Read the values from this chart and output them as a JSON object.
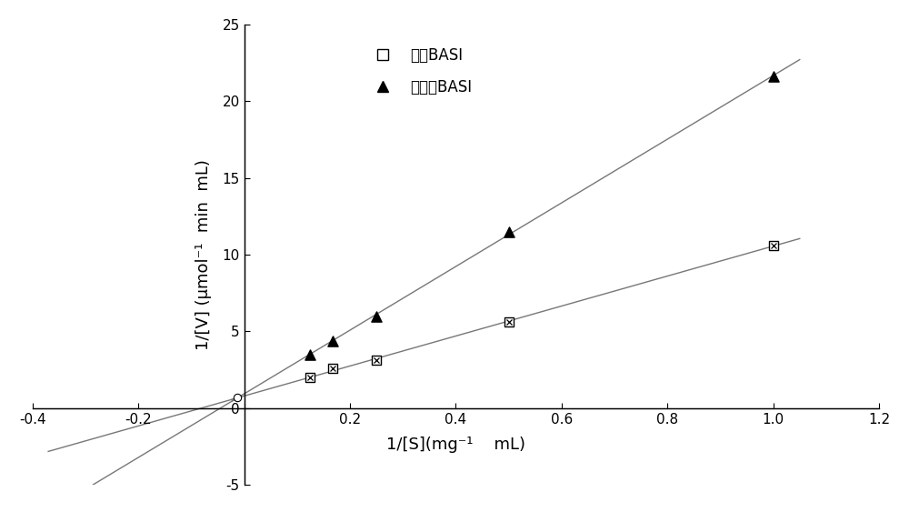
{
  "xlabel": "1/[S](mg⁻¹    mL)",
  "ylabel": "1/[V] (μmol⁻¹  min  mL)",
  "xlim": [
    -0.4,
    1.2
  ],
  "ylim": [
    -5,
    25
  ],
  "xticks": [
    -0.4,
    -0.2,
    0,
    0.2,
    0.4,
    0.6,
    0.8,
    1.0,
    1.2
  ],
  "yticks": [
    -5,
    0,
    5,
    10,
    15,
    20,
    25
  ],
  "series_with_basi": {
    "x": [
      0.125,
      0.167,
      0.25,
      0.5,
      1.0
    ],
    "y": [
      2.0,
      2.6,
      3.1,
      5.6,
      10.6
    ],
    "label": "添加BASI"
  },
  "series_without_basi": {
    "x": [
      0.125,
      0.167,
      0.25,
      0.5,
      1.0
    ],
    "y": [
      3.5,
      4.4,
      6.0,
      11.5,
      21.6
    ],
    "label": "未添加BASI"
  },
  "bg_color": "#ffffff",
  "line_color": "#777777",
  "font_size_label": 13,
  "font_size_tick": 11,
  "font_size_legend": 12
}
